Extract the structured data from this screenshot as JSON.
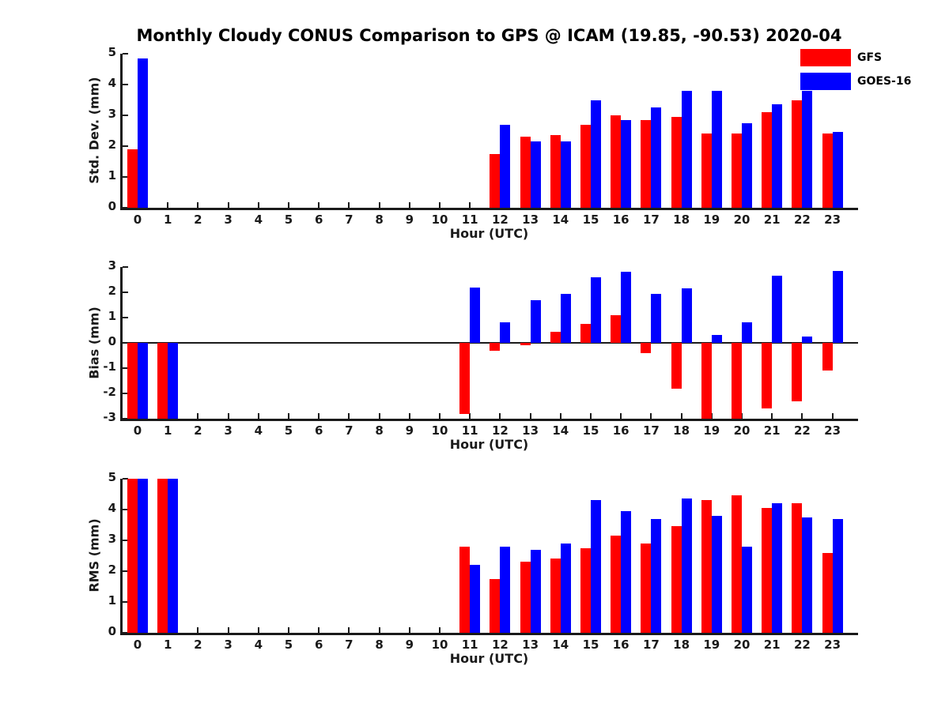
{
  "figure": {
    "title": "Monthly Cloudy CONUS Comparison to GPS @ ICAM (19.85, -90.53) 2020-04"
  },
  "legend": {
    "position": "top-right",
    "items": [
      {
        "label": "GFS",
        "color": "#ff0000"
      },
      {
        "label": "GOES-16",
        "color": "#0000ff"
      }
    ]
  },
  "colors": {
    "gfs": "#ff0000",
    "goes16": "#0000ff",
    "axis": "#1a1a1a",
    "text": "#1a1a1a",
    "background": "#ffffff"
  },
  "chart_data": [
    {
      "type": "bar",
      "panel": "std-dev",
      "ylabel": "Std. Dev. (mm)",
      "xlabel": "Hour (UTC)",
      "ylim": [
        0,
        5
      ],
      "yticks": [
        0,
        1,
        2,
        3,
        4,
        5
      ],
      "grid": false,
      "categories": [
        "0",
        "1",
        "2",
        "3",
        "4",
        "5",
        "6",
        "7",
        "8",
        "9",
        "10",
        "11",
        "12",
        "13",
        "14",
        "15",
        "16",
        "17",
        "18",
        "19",
        "20",
        "21",
        "22",
        "23"
      ],
      "series": [
        {
          "name": "GFS",
          "color": "#ff0000",
          "values": [
            1.9,
            null,
            null,
            null,
            null,
            null,
            null,
            null,
            null,
            null,
            null,
            null,
            1.75,
            2.3,
            2.35,
            2.7,
            3.0,
            2.85,
            2.95,
            2.4,
            2.4,
            3.1,
            3.5,
            2.4
          ]
        },
        {
          "name": "GOES-16",
          "color": "#0000ff",
          "values": [
            4.85,
            null,
            null,
            null,
            null,
            null,
            null,
            null,
            null,
            null,
            null,
            null,
            2.7,
            2.15,
            2.15,
            3.5,
            2.85,
            3.25,
            3.8,
            3.8,
            2.75,
            3.35,
            3.8,
            2.45
          ]
        }
      ]
    },
    {
      "type": "bar",
      "panel": "bias",
      "ylabel": "Bias (mm)",
      "xlabel": "Hour (UTC)",
      "ylim": [
        -3,
        3
      ],
      "yticks": [
        -3,
        -2,
        -1,
        0,
        1,
        2,
        3
      ],
      "zero_line": true,
      "grid": false,
      "clipped_note": "bars at hours 0,1 (both series) and hours 19,20 (GFS) reach the -3 axis limit",
      "categories": [
        "0",
        "1",
        "2",
        "3",
        "4",
        "5",
        "6",
        "7",
        "8",
        "9",
        "10",
        "11",
        "12",
        "13",
        "14",
        "15",
        "16",
        "17",
        "18",
        "19",
        "20",
        "21",
        "22",
        "23"
      ],
      "series": [
        {
          "name": "GFS",
          "color": "#ff0000",
          "values": [
            -3,
            -3,
            null,
            null,
            null,
            null,
            null,
            null,
            null,
            null,
            null,
            -2.8,
            -0.3,
            -0.1,
            0.45,
            0.75,
            1.1,
            -0.4,
            -1.8,
            -3,
            -3,
            -2.6,
            -2.3,
            -1.1
          ]
        },
        {
          "name": "GOES-16",
          "color": "#0000ff",
          "values": [
            -3,
            -3,
            null,
            null,
            null,
            null,
            null,
            null,
            null,
            null,
            null,
            2.2,
            0.8,
            1.7,
            1.95,
            2.6,
            2.8,
            1.95,
            2.15,
            0.3,
            0.8,
            2.65,
            0.25,
            2.85
          ]
        }
      ]
    },
    {
      "type": "bar",
      "panel": "rms",
      "ylabel": "RMS (mm)",
      "xlabel": "Hour (UTC)",
      "ylim": [
        0,
        5
      ],
      "yticks": [
        0,
        1,
        2,
        3,
        4,
        5
      ],
      "grid": false,
      "clipped_note": "bars at hours 0,1 (both series) reach the 5 axis limit",
      "categories": [
        "0",
        "1",
        "2",
        "3",
        "4",
        "5",
        "6",
        "7",
        "8",
        "9",
        "10",
        "11",
        "12",
        "13",
        "14",
        "15",
        "16",
        "17",
        "18",
        "19",
        "20",
        "21",
        "22",
        "23"
      ],
      "series": [
        {
          "name": "GFS",
          "color": "#ff0000",
          "values": [
            5,
            5,
            null,
            null,
            null,
            null,
            null,
            null,
            null,
            null,
            null,
            2.8,
            1.75,
            2.3,
            2.4,
            2.75,
            3.15,
            2.9,
            3.45,
            4.3,
            4.45,
            4.05,
            4.2,
            2.6
          ]
        },
        {
          "name": "GOES-16",
          "color": "#0000ff",
          "values": [
            5,
            5,
            null,
            null,
            null,
            null,
            null,
            null,
            null,
            null,
            null,
            2.2,
            2.8,
            2.7,
            2.9,
            4.3,
            3.95,
            3.7,
            4.35,
            3.8,
            2.8,
            4.2,
            3.75,
            3.7
          ]
        }
      ]
    }
  ]
}
